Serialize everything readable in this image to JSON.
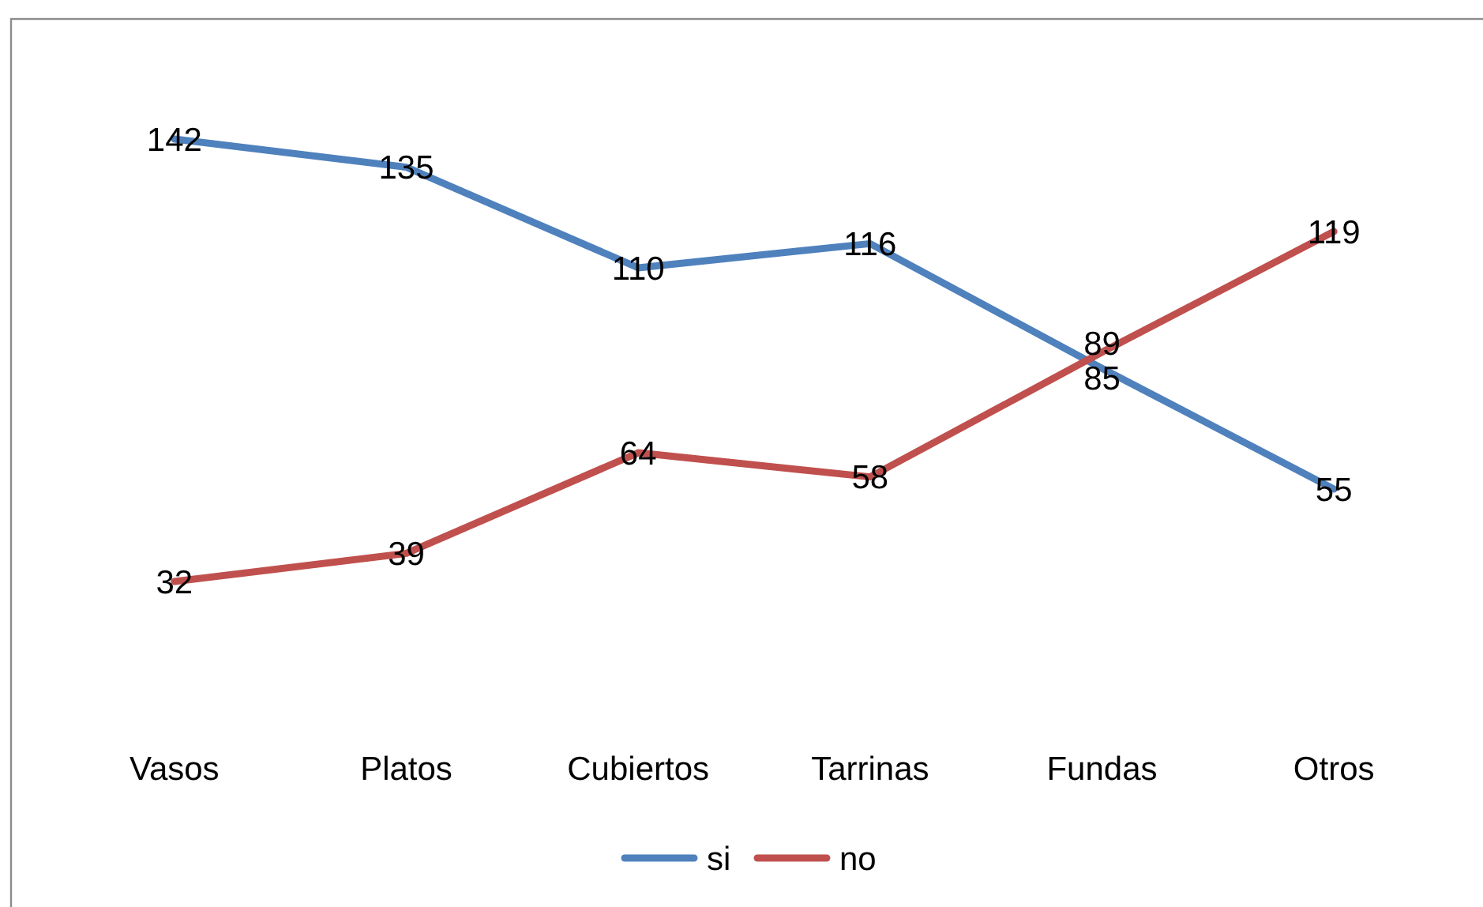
{
  "chart_data": {
    "type": "line",
    "categories": [
      "Vasos",
      "Platos",
      "Cubiertos",
      "Tarrinas",
      "Fundas",
      "Otros"
    ],
    "series": [
      {
        "name": "si",
        "color": "#4f81bd",
        "values": [
          142,
          135,
          110,
          116,
          85,
          55
        ]
      },
      {
        "name": "no",
        "color": "#c0504d",
        "values": [
          32,
          39,
          64,
          58,
          89,
          119
        ]
      }
    ],
    "tick_labels": "x",
    "data_labels": true,
    "legend": "bottom",
    "marker": "none",
    "line_style": "solid"
  }
}
